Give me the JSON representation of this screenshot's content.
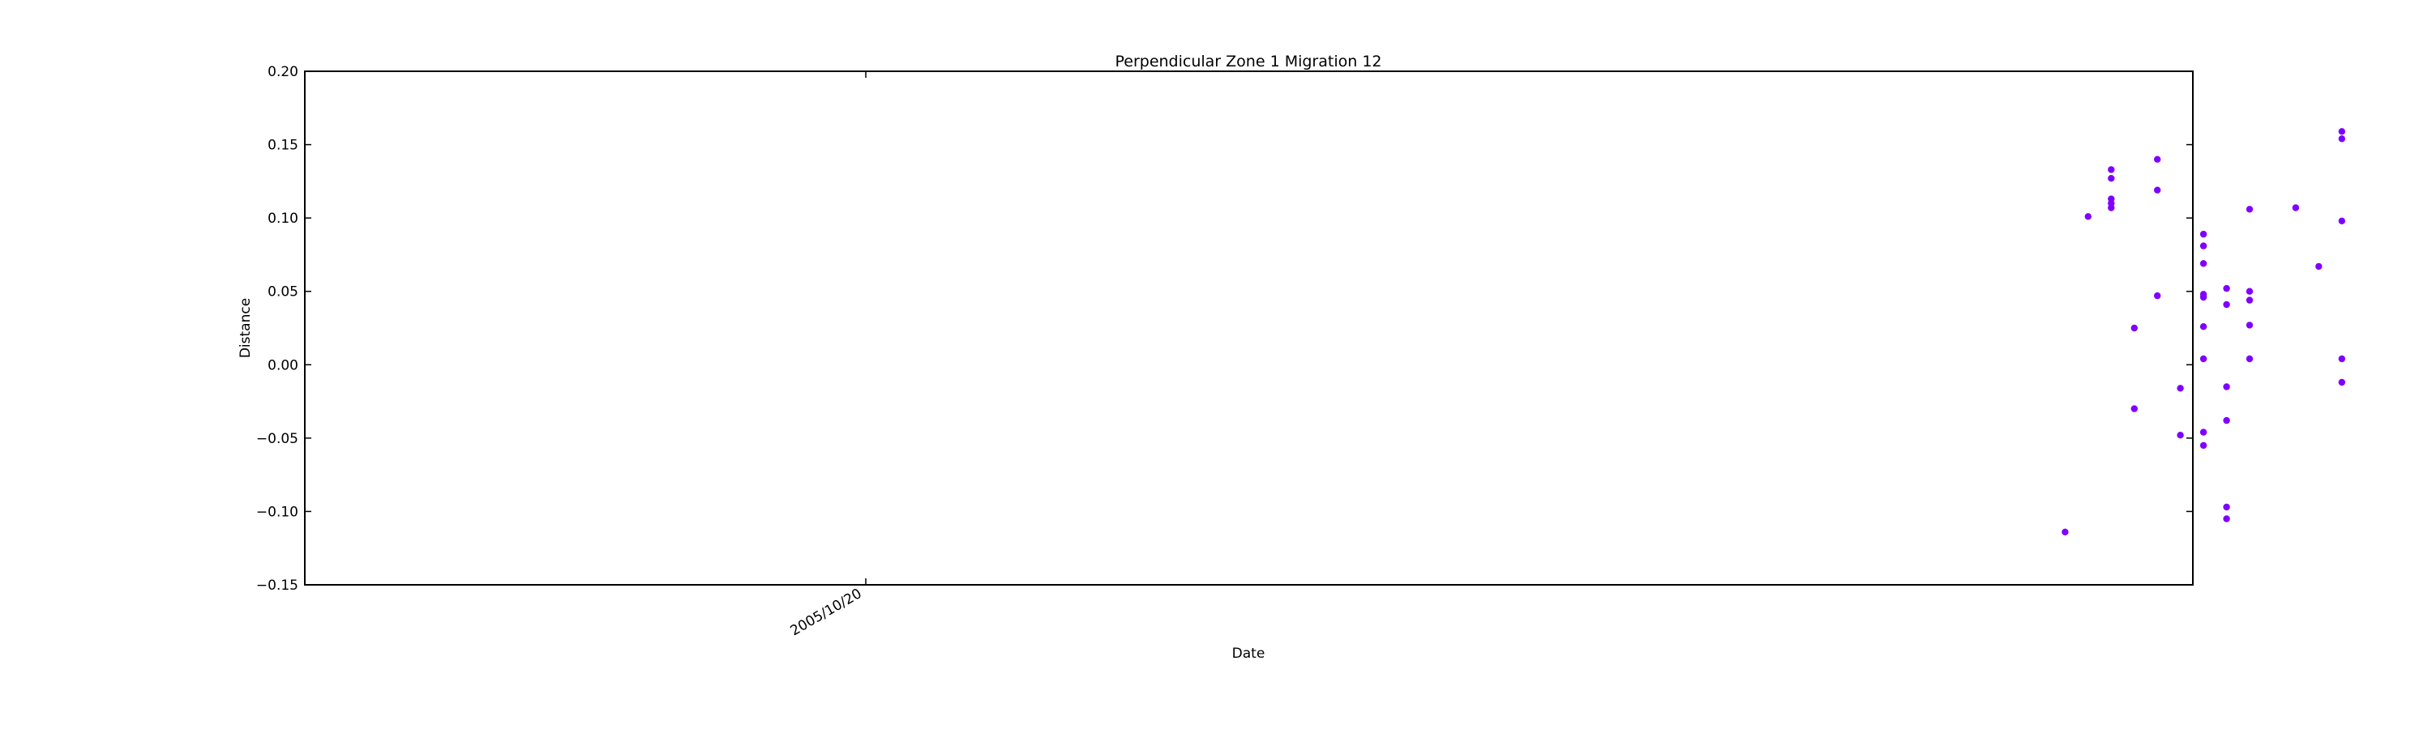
{
  "chart_data": {
    "type": "scatter",
    "title": "Perpendicular Zone 1 Migration 12",
    "xlabel": "Date",
    "ylabel": "Distance",
    "x_axis": {
      "kind": "date",
      "tick_labels": [
        "2005/10/20"
      ]
    },
    "y_axis": {
      "ylim": [
        -0.15,
        0.2
      ],
      "ticks": [
        -0.15,
        -0.1,
        -0.05,
        0.0,
        0.05,
        0.1,
        0.15,
        0.2
      ],
      "tick_labels": [
        "−0.15",
        "−0.10",
        "−0.05",
        "0.00",
        "0.05",
        "0.10",
        "0.15",
        "0.20"
      ]
    },
    "grid": false,
    "legend": "none",
    "marker_color": "#7f00ff",
    "series": [
      {
        "points": [
          {
            "x": "2005/12/11",
            "y": -0.114
          },
          {
            "x": "2005/12/12",
            "y": 0.101
          },
          {
            "x": "2005/12/13",
            "y": 0.11
          },
          {
            "x": "2005/12/13",
            "y": 0.113
          },
          {
            "x": "2005/12/13",
            "y": 0.107
          },
          {
            "x": "2005/12/13",
            "y": 0.133
          },
          {
            "x": "2005/12/13",
            "y": 0.127
          },
          {
            "x": "2005/12/14",
            "y": -0.03
          },
          {
            "x": "2005/12/14",
            "y": 0.025
          },
          {
            "x": "2005/12/15",
            "y": 0.14
          },
          {
            "x": "2005/12/15",
            "y": 0.119
          },
          {
            "x": "2005/12/15",
            "y": 0.047
          },
          {
            "x": "2005/12/16",
            "y": -0.016
          },
          {
            "x": "2005/12/16",
            "y": -0.048
          },
          {
            "x": "2005/12/17",
            "y": 0.048
          },
          {
            "x": "2005/12/17",
            "y": 0.089
          },
          {
            "x": "2005/12/17",
            "y": 0.081
          },
          {
            "x": "2005/12/17",
            "y": 0.069
          },
          {
            "x": "2005/12/17",
            "y": 0.026
          },
          {
            "x": "2005/12/17",
            "y": -0.055
          },
          {
            "x": "2005/12/17",
            "y": 0.046
          },
          {
            "x": "2005/12/17",
            "y": 0.004
          },
          {
            "x": "2005/12/17",
            "y": -0.046
          },
          {
            "x": "2005/12/18",
            "y": -0.105
          },
          {
            "x": "2005/12/18",
            "y": -0.097
          },
          {
            "x": "2005/12/18",
            "y": -0.038
          },
          {
            "x": "2005/12/18",
            "y": -0.015
          },
          {
            "x": "2005/12/18",
            "y": 0.052
          },
          {
            "x": "2005/12/18",
            "y": 0.041
          },
          {
            "x": "2005/12/19",
            "y": 0.027
          },
          {
            "x": "2005/12/19",
            "y": 0.106
          },
          {
            "x": "2005/12/19",
            "y": 0.05
          },
          {
            "x": "2005/12/19",
            "y": 0.044
          },
          {
            "x": "2005/12/19",
            "y": 0.004
          },
          {
            "x": "2005/12/21",
            "y": 0.107
          },
          {
            "x": "2005/12/22",
            "y": 0.067
          },
          {
            "x": "2005/12/23",
            "y": 0.004
          },
          {
            "x": "2005/12/23",
            "y": -0.012
          },
          {
            "x": "2005/12/23",
            "y": 0.098
          },
          {
            "x": "2005/12/23",
            "y": 0.159
          },
          {
            "x": "2005/12/23",
            "y": 0.154
          }
        ]
      }
    ]
  }
}
